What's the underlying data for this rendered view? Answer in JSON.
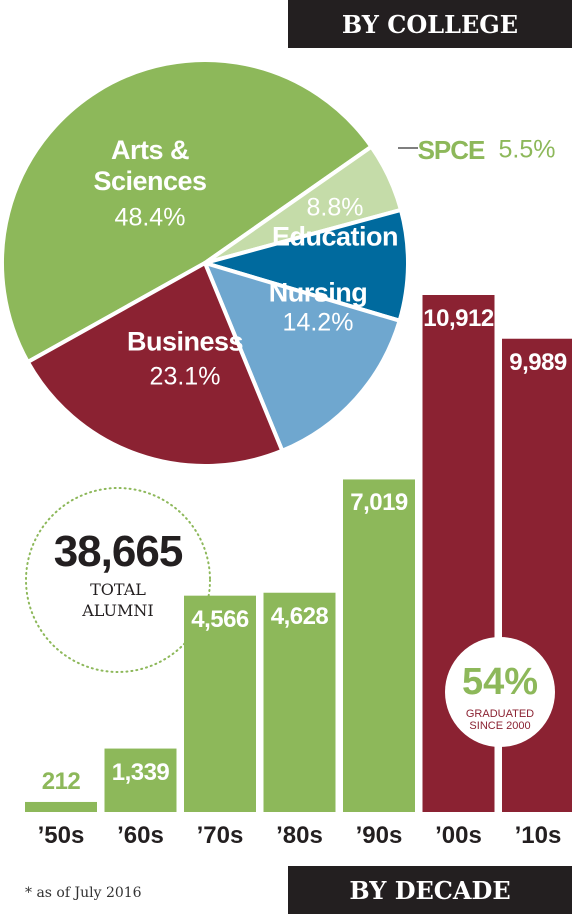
{
  "chart_data": [
    {
      "type": "pie",
      "title": "BY COLLEGE",
      "categories": [
        "Arts & Sciences",
        "SPCE",
        "Education",
        "Nursing",
        "Business"
      ],
      "values": [
        48.4,
        5.5,
        8.8,
        14.2,
        23.1
      ],
      "value_labels": [
        "48.4%",
        "5.5%",
        "8.8%",
        "14.2%",
        "23.1%"
      ],
      "colors": [
        "#8db85a",
        "#c5dca9",
        "#006a9e",
        "#6fa7cf",
        "#8b2232"
      ]
    },
    {
      "type": "bar",
      "title": "BY DECADE",
      "categories": [
        "’50s",
        "’60s",
        "’70s",
        "’80s",
        "’90s",
        "’00s",
        "’10s"
      ],
      "values": [
        212,
        1339,
        4566,
        4628,
        7019,
        10912,
        9989
      ],
      "value_labels": [
        "212",
        "1,339",
        "4,566",
        "4,628",
        "7,019",
        "10,912",
        "9,989"
      ],
      "colors": [
        "#8db85a",
        "#8db85a",
        "#8db85a",
        "#8db85a",
        "#8db85a",
        "#8b2232",
        "#8b2232"
      ]
    }
  ],
  "annotations": {
    "total": "38,665",
    "total_label": "TOTAL ALUMNI",
    "share": "54%",
    "share_label": "GRADUATED SINCE 2000"
  },
  "footnote": "* as of July 2016"
}
